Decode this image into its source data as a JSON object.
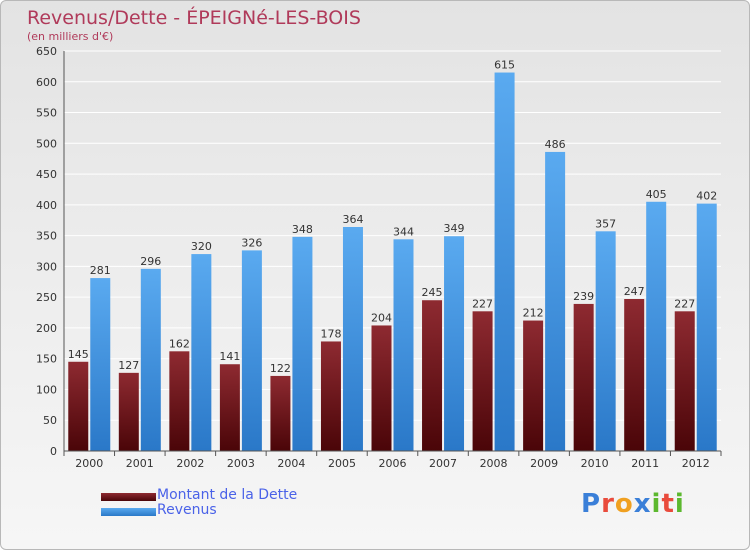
{
  "header": {
    "title": "Revenus/Dette - ÉPEIGNé-LES-BOIS",
    "subtitle": "(en milliers d'€)"
  },
  "legend": [
    {
      "label": "Montant de la Dette",
      "color": "#6b0f16"
    },
    {
      "label": "Revenus",
      "color": "#3a8ee0"
    }
  ],
  "logo": {
    "text": "Proxiti",
    "colors": [
      "#3a7fd8",
      "#e94b3c",
      "#f0a020",
      "#3a7fd8",
      "#5cb82e",
      "#e94b3c",
      "#5cb82e"
    ]
  },
  "chart_data": {
    "type": "bar",
    "title": "Revenus/Dette - ÉPEIGNé-LES-BOIS",
    "subtitle": "(en milliers d'€)",
    "categories": [
      "2000",
      "2001",
      "2002",
      "2003",
      "2004",
      "2005",
      "2006",
      "2007",
      "2008",
      "2009",
      "2010",
      "2011",
      "2012"
    ],
    "series": [
      {
        "name": "Montant de la Dette",
        "color": "#6b0f16",
        "values": [
          145,
          127,
          162,
          141,
          122,
          178,
          204,
          245,
          227,
          212,
          239,
          247,
          227
        ]
      },
      {
        "name": "Revenus",
        "color": "#3a8ee0",
        "values": [
          281,
          296,
          320,
          326,
          348,
          364,
          344,
          349,
          615,
          486,
          357,
          405,
          402
        ]
      }
    ],
    "yticks": [
      0,
      50,
      100,
      150,
      200,
      250,
      300,
      350,
      400,
      450,
      500,
      550,
      600,
      650
    ],
    "ylim": [
      0,
      650
    ],
    "grid": true,
    "legend_position": "bottom-left"
  }
}
